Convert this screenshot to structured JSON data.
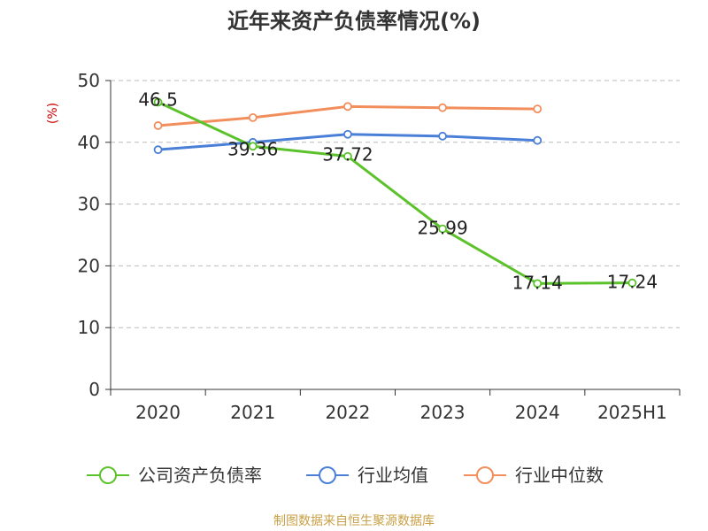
{
  "chart_data": {
    "type": "line",
    "title": "近年来资产负债率情况(%)",
    "ylabel": "(%)",
    "xlabel": "",
    "categories": [
      "2020",
      "2021",
      "2022",
      "2023",
      "2024",
      "2025H1"
    ],
    "ylim": [
      0,
      50
    ],
    "yticks": [
      "0",
      "10",
      "20",
      "30",
      "40",
      "50"
    ],
    "grid": true,
    "legend_position": "bottom",
    "series": [
      {
        "name": "公司资产负债率",
        "color": "#5cc22b",
        "values": [
          46.5,
          39.36,
          37.72,
          25.99,
          17.14,
          17.24
        ],
        "labels": [
          "46.5",
          "39.36",
          "37.72",
          "25.99",
          "17.14",
          "17.24"
        ]
      },
      {
        "name": "行业均值",
        "color": "#4a7fd8",
        "values": [
          38.8,
          40.0,
          41.3,
          41.0,
          40.3,
          null
        ]
      },
      {
        "name": "行业中位数",
        "color": "#f28e5c",
        "values": [
          42.7,
          44.0,
          45.8,
          45.6,
          45.4,
          null
        ]
      }
    ]
  },
  "source": "制图数据来自恒生聚源数据库"
}
